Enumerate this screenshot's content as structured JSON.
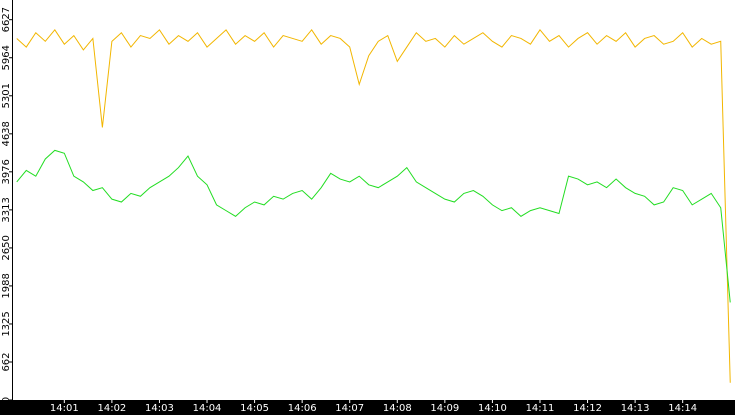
{
  "chart_data": {
    "type": "line",
    "x": [
      0,
      0.2,
      0.4,
      0.6,
      0.8,
      1,
      1.2,
      1.4,
      1.6,
      1.8,
      2,
      2.2,
      2.4,
      2.6,
      2.8,
      3,
      3.2,
      3.4,
      3.6,
      3.8,
      4,
      4.2,
      4.4,
      4.6,
      4.8,
      5,
      5.2,
      5.4,
      5.6,
      5.8,
      6,
      6.2,
      6.4,
      6.6,
      6.8,
      7,
      7.2,
      7.4,
      7.6,
      7.8,
      8,
      8.2,
      8.4,
      8.6,
      8.8,
      9,
      9.2,
      9.4,
      9.6,
      9.8,
      10,
      10.2,
      10.4,
      10.6,
      10.8,
      11,
      11.2,
      11.4,
      11.6,
      11.8,
      12,
      12.2,
      12.4,
      12.6,
      12.8,
      13,
      13.2,
      13.4,
      13.6,
      13.8,
      14,
      14.2,
      14.4,
      14.6,
      14.8,
      15
    ],
    "series": [
      {
        "color": "#f2b600",
        "values": [
          6300,
          6150,
          6400,
          6250,
          6450,
          6200,
          6350,
          6100,
          6300,
          4750,
          6250,
          6400,
          6150,
          6350,
          6300,
          6450,
          6200,
          6350,
          6250,
          6400,
          6150,
          6300,
          6450,
          6200,
          6350,
          6250,
          6400,
          6150,
          6350,
          6300,
          6250,
          6450,
          6200,
          6350,
          6300,
          6150,
          5500,
          6000,
          6250,
          6350,
          5900,
          6150,
          6400,
          6250,
          6300,
          6150,
          6350,
          6200,
          6300,
          6400,
          6250,
          6150,
          6350,
          6300,
          6200,
          6450,
          6250,
          6350,
          6150,
          6300,
          6400,
          6200,
          6350,
          6250,
          6400,
          6150,
          6300,
          6350,
          6200,
          6250,
          6400,
          6150,
          6300,
          6200,
          6250,
          300
        ]
      },
      {
        "color": "#22dd22",
        "values": [
          3800,
          4000,
          3900,
          4200,
          4350,
          4300,
          3900,
          3800,
          3650,
          3700,
          3500,
          3450,
          3600,
          3550,
          3700,
          3800,
          3900,
          4050,
          4250,
          3900,
          3750,
          3400,
          3300,
          3200,
          3350,
          3450,
          3400,
          3550,
          3500,
          3600,
          3650,
          3500,
          3700,
          3950,
          3850,
          3800,
          3900,
          3750,
          3700,
          3800,
          3900,
          4050,
          3800,
          3700,
          3600,
          3500,
          3450,
          3600,
          3650,
          3550,
          3400,
          3300,
          3350,
          3200,
          3300,
          3350,
          3300,
          3250,
          3900,
          3850,
          3750,
          3800,
          3700,
          3850,
          3700,
          3600,
          3550,
          3400,
          3450,
          3700,
          3650,
          3400,
          3500,
          3600,
          3350,
          1700
        ]
      }
    ],
    "xlim": [
      -0.1,
      15.1
    ],
    "xticks": [
      {
        "value": 1,
        "label": "14:01"
      },
      {
        "value": 2,
        "label": "14:02"
      },
      {
        "value": 3,
        "label": "14:03"
      },
      {
        "value": 4,
        "label": "14:04"
      },
      {
        "value": 5,
        "label": "14:05"
      },
      {
        "value": 6,
        "label": "14:06"
      },
      {
        "value": 7,
        "label": "14:07"
      },
      {
        "value": 8,
        "label": "14:08"
      },
      {
        "value": 9,
        "label": "14:09"
      },
      {
        "value": 10,
        "label": "14:10"
      },
      {
        "value": 11,
        "label": "14:11"
      },
      {
        "value": 12,
        "label": "14:12"
      },
      {
        "value": 13,
        "label": "14:13"
      },
      {
        "value": 14,
        "label": "14:14"
      }
    ],
    "ylim": [
      0,
      6970
    ],
    "yticks": [
      0,
      662,
      1325,
      1988,
      2650,
      3313,
      3976,
      4638,
      5301,
      5964,
      6627
    ]
  }
}
